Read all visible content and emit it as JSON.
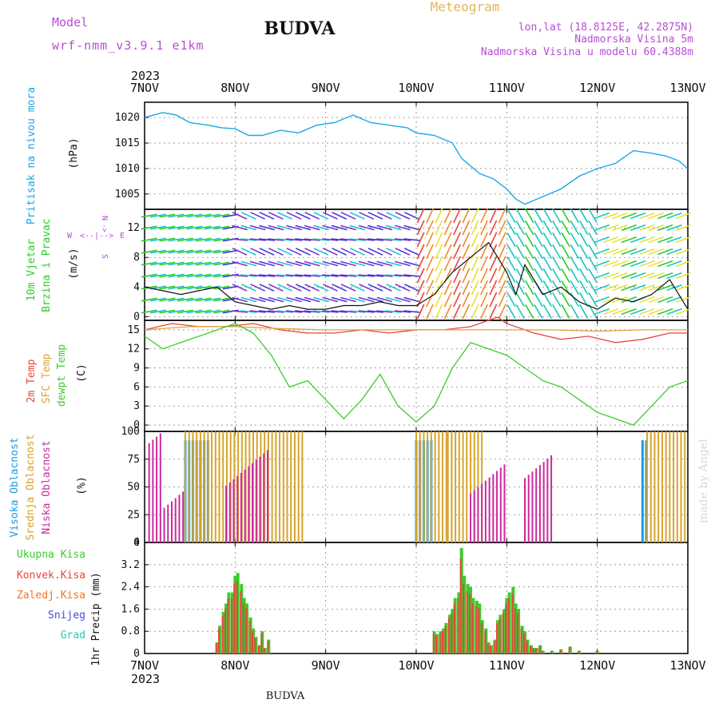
{
  "header": {
    "model_label": "Model",
    "model_name": "wrf-nmm_v3.9.1 e1km",
    "title": "BUDVA",
    "meteogram_label": "Meteogram",
    "lonlat": "lon,lat (18.8125E, 42.2875N)",
    "altitude": "Nadmorska Visina 5m",
    "model_altitude": "Nadmorska Visina u modelu 60.4388m",
    "year_top": "2023",
    "year_bottom": "2023",
    "footer": "BUDVA",
    "watermark": "made by Angel"
  },
  "colors": {
    "pressure": "#1aa7e6",
    "temp2m": "#e8453c",
    "sfc_temp": "#e0a23a",
    "dewpt": "#3ccc2a",
    "high_cloud": "#1a9be0",
    "mid_cloud": "#d9a32a",
    "low_cloud": "#cc2a9e",
    "total_precip": "#3ccc2a",
    "conv_precip": "#e8453c",
    "frz_precip": "#f0752a",
    "snow": "#4a4adf",
    "grad": "#27c7b8",
    "wind_label": "#2ecc2a",
    "wind_dir": "#b64ed6",
    "grid": "#888888"
  },
  "chart_data": [
    {
      "type": "line",
      "name": "pressure",
      "ylabel": "Pritisak na nivou mora",
      "unit": "(hPa)",
      "x_tick_labels": [
        "7NOV",
        "8NOV",
        "9NOV",
        "10NOV",
        "11NOV",
        "12NOV",
        "13NOV"
      ],
      "ylim": [
        1002,
        1023
      ],
      "yticks": [
        1005,
        1010,
        1015,
        1020
      ],
      "x_days": [
        0,
        0.2,
        0.35,
        0.5,
        0.7,
        0.85,
        1.0,
        1.15,
        1.3,
        1.5,
        1.7,
        1.9,
        2.1,
        2.3,
        2.5,
        2.7,
        2.9,
        3.0,
        3.2,
        3.4,
        3.5,
        3.7,
        3.85,
        4.0,
        4.1,
        4.2,
        4.4,
        4.6,
        4.8,
        5.0,
        5.2,
        5.4,
        5.6,
        5.75,
        5.9,
        6.0
      ],
      "values": [
        1020,
        1021,
        1020.5,
        1019,
        1018.5,
        1018,
        1017.8,
        1016.5,
        1016.5,
        1017.5,
        1017,
        1018.5,
        1019,
        1020.5,
        1019,
        1018.5,
        1018,
        1017,
        1016.5,
        1015,
        1012,
        1009,
        1008,
        1006,
        1004,
        1003,
        1004.5,
        1006,
        1008.5,
        1010,
        1011,
        1013.5,
        1013,
        1012.5,
        1011.5,
        1010
      ]
    },
    {
      "type": "line",
      "name": "wind",
      "ylabel": "10m Vjetar Brzina i Pravac",
      "unit": "(m/s)",
      "compass": {
        "n": "N",
        "s": "S",
        "e": "E",
        "w": "W"
      },
      "ylim": [
        -0.5,
        14.5
      ],
      "yticks": [
        0,
        4,
        8,
        12
      ],
      "x_days": [
        0,
        0.2,
        0.4,
        0.6,
        0.8,
        0.9,
        1.0,
        1.2,
        1.4,
        1.6,
        1.8,
        2.0,
        2.2,
        2.4,
        2.6,
        2.8,
        3.0,
        3.2,
        3.4,
        3.6,
        3.8,
        3.9,
        4.0,
        4.1,
        4.2,
        4.4,
        4.6,
        4.8,
        5.0,
        5.2,
        5.4,
        5.6,
        5.8,
        6.0
      ],
      "values": [
        4,
        3.5,
        3,
        3.5,
        4,
        3,
        2,
        1.5,
        1,
        1.5,
        1,
        1,
        1.5,
        1.5,
        2,
        1.5,
        1.5,
        3,
        6,
        8,
        10,
        8,
        6,
        3,
        7,
        3,
        4,
        2,
        1,
        2.5,
        2,
        3,
        5,
        1
      ]
    },
    {
      "type": "line",
      "name": "temperature",
      "ylabel": "2m Temp SFC Temp dewpt Temp",
      "unit": "(C)",
      "ylim": [
        -1,
        16.5
      ],
      "yticks": [
        0,
        3,
        6,
        9,
        12,
        15
      ],
      "series": [
        {
          "name": "2m Temp",
          "x": [
            0,
            0.3,
            0.6,
            0.9,
            1.2,
            1.5,
            1.8,
            2.1,
            2.4,
            2.7,
            3.0,
            3.3,
            3.6,
            3.9,
            4.0,
            4.3,
            4.6,
            4.9,
            5.2,
            5.5,
            5.8,
            6.0
          ],
          "values": [
            15,
            16,
            15.5,
            15.5,
            16,
            15,
            14.5,
            14.5,
            15,
            14.5,
            15,
            15,
            15.5,
            17,
            16,
            14.5,
            13.5,
            14,
            13,
            13.5,
            14.5,
            14.5
          ]
        },
        {
          "name": "SFC Temp",
          "x": [
            0,
            0.5,
            1.0,
            1.5,
            2.0,
            2.5,
            3.0,
            3.5,
            4.0,
            4.5,
            5.0,
            5.5,
            6.0
          ],
          "values": [
            15,
            15.5,
            15.5,
            15.2,
            15,
            15,
            15,
            15,
            15,
            15,
            14.8,
            15,
            15
          ]
        },
        {
          "name": "dewpt Temp",
          "x": [
            0,
            0.2,
            0.4,
            0.6,
            0.8,
            1.0,
            1.2,
            1.4,
            1.6,
            1.8,
            2.0,
            2.2,
            2.4,
            2.6,
            2.8,
            3.0,
            3.2,
            3.4,
            3.6,
            3.8,
            4.0,
            4.2,
            4.4,
            4.6,
            4.8,
            5.0,
            5.2,
            5.4,
            5.6,
            5.8,
            6.0
          ],
          "values": [
            14,
            12,
            13,
            14,
            15,
            16,
            14.5,
            11,
            6,
            7,
            4,
            1,
            4,
            8,
            3,
            0.5,
            3,
            9,
            13,
            12,
            11,
            9,
            7,
            6,
            4,
            2,
            1,
            0,
            3,
            6,
            7
          ]
        }
      ]
    },
    {
      "type": "bar",
      "name": "clouds",
      "ylabel": "Visoka Oblacnost Srednja Oblacnost Niska Oblacnost",
      "unit": "(%)",
      "ylim": [
        0,
        100
      ],
      "yticks": [
        0,
        25,
        50,
        75,
        100
      ],
      "series": [
        {
          "name": "Visoka Oblacnost",
          "ranges": [
            [
              0.45,
              0.7
            ],
            [
              3.0,
              3.2
            ],
            [
              5.5,
              5.55
            ]
          ],
          "value": 92
        },
        {
          "name": "Srednja Oblacnost",
          "ranges": [
            [
              0.45,
              1.75
            ],
            [
              3.0,
              3.35
            ],
            [
              3.35,
              3.75
            ],
            [
              5.55,
              6.0
            ]
          ],
          "value": 100
        },
        {
          "name": "Niska Oblacnost",
          "ranges": [
            [
              0.05,
              0.45
            ],
            [
              0.9,
              1.4
            ],
            [
              3.6,
              4.0
            ],
            [
              4.2,
              4.5
            ]
          ],
          "value": 60
        }
      ]
    },
    {
      "type": "bar",
      "name": "precip",
      "ylabel": "1hr Precip",
      "unit": "(mm)",
      "ylim": [
        0,
        4
      ],
      "yticks": [
        0,
        0.8,
        1.6,
        2.4,
        3.2,
        4
      ],
      "legend": [
        "Ukupna Kisa",
        "Konvek.Kisa",
        "Zaledj.Kisa",
        "Snijeg",
        "Grad"
      ],
      "x_days": [
        0.8,
        0.83,
        0.87,
        0.9,
        0.93,
        0.97,
        1.0,
        1.03,
        1.07,
        1.1,
        1.13,
        1.17,
        1.2,
        1.23,
        1.27,
        1.3,
        1.33,
        1.37,
        3.2,
        3.23,
        3.27,
        3.3,
        3.33,
        3.37,
        3.4,
        3.43,
        3.47,
        3.5,
        3.53,
        3.57,
        3.6,
        3.63,
        3.67,
        3.7,
        3.73,
        3.77,
        3.8,
        3.83,
        3.87,
        3.9,
        3.93,
        3.97,
        4.0,
        4.03,
        4.07,
        4.1,
        4.13,
        4.17,
        4.2,
        4.23,
        4.27,
        4.3,
        4.33,
        4.37,
        4.4,
        4.5,
        4.6,
        4.7,
        4.8,
        5.0
      ],
      "values": [
        0.4,
        1.0,
        1.5,
        1.8,
        2.2,
        2.2,
        2.8,
        2.9,
        2.5,
        2.0,
        1.8,
        1.3,
        0.9,
        0.6,
        0.3,
        0.8,
        0.2,
        0.5,
        0.8,
        0.7,
        0.8,
        0.9,
        1.1,
        1.4,
        1.6,
        2.0,
        2.2,
        3.8,
        2.8,
        2.5,
        2.4,
        2.0,
        1.9,
        1.8,
        1.2,
        0.9,
        0.4,
        0.3,
        0.5,
        1.2,
        1.4,
        1.6,
        2.0,
        2.2,
        2.4,
        1.8,
        1.6,
        1.0,
        0.8,
        0.5,
        0.3,
        0.2,
        0.2,
        0.3,
        0.1,
        0.1,
        0.15,
        0.25,
        0.1,
        0.1
      ]
    }
  ]
}
